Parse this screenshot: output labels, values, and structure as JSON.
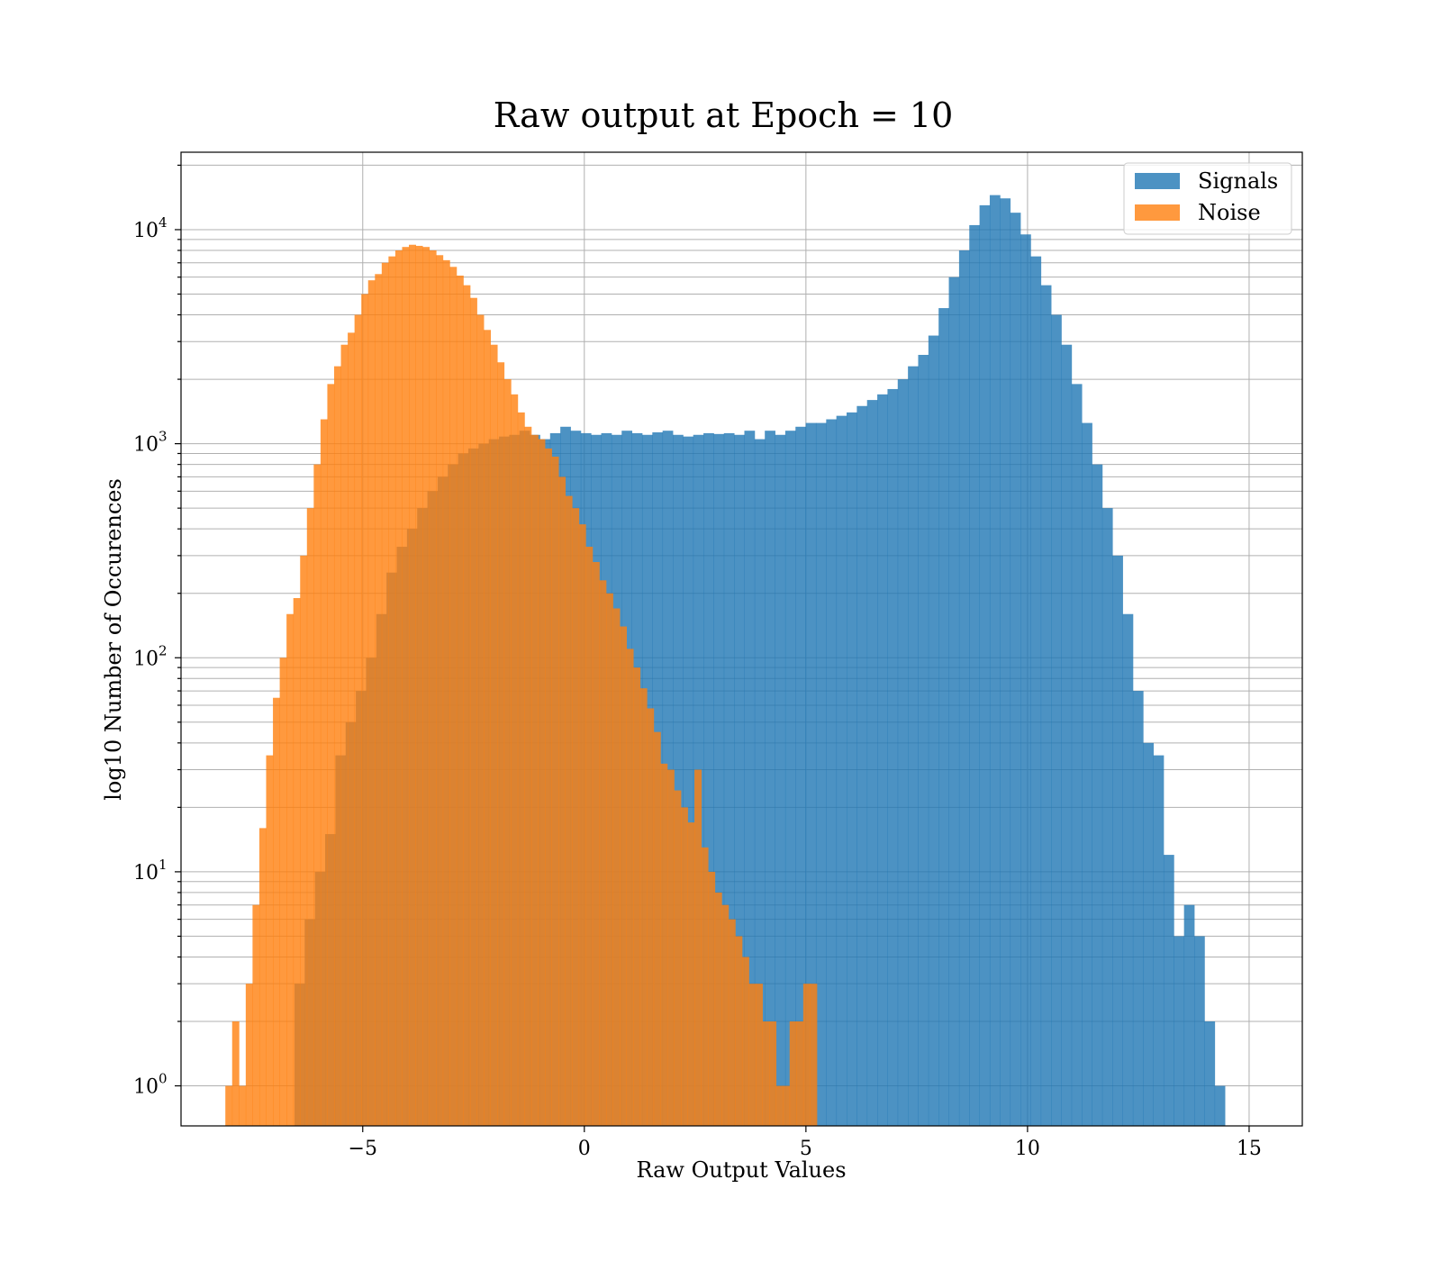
{
  "chart_data": {
    "type": "bar",
    "title": "Raw output at Epoch = 10",
    "xlabel": "Raw Output Values",
    "ylabel": "log10 Number of Occurences",
    "xlim": [
      -9.1,
      16.2
    ],
    "ylim": [
      0.65,
      23000
    ],
    "yscale": "log",
    "grid": true,
    "legend_position": "top-right",
    "xticks": [
      {
        "value": -5,
        "label": "−5"
      },
      {
        "value": 0,
        "label": "0"
      },
      {
        "value": 5,
        "label": "5"
      },
      {
        "value": 10,
        "label": "10"
      },
      {
        "value": 15,
        "label": "15"
      }
    ],
    "yticks": [
      {
        "value": 1,
        "base": "10",
        "exp": "0"
      },
      {
        "value": 10,
        "base": "10",
        "exp": "1"
      },
      {
        "value": 100,
        "base": "10",
        "exp": "2"
      },
      {
        "value": 1000,
        "base": "10",
        "exp": "3"
      },
      {
        "value": 10000,
        "base": "10",
        "exp": "4"
      }
    ],
    "series": [
      {
        "name": "Signals",
        "color": "#1f77b4",
        "alpha": 0.8,
        "bin_start": -6.54,
        "bin_width": 0.2307,
        "values": [
          3,
          6,
          10,
          15,
          35,
          50,
          70,
          100,
          160,
          250,
          330,
          400,
          500,
          600,
          700,
          800,
          900,
          950,
          1000,
          1050,
          1080,
          1100,
          1150,
          1100,
          1050,
          1120,
          1200,
          1150,
          1120,
          1100,
          1120,
          1100,
          1150,
          1120,
          1100,
          1130,
          1150,
          1100,
          1080,
          1100,
          1120,
          1110,
          1120,
          1100,
          1150,
          1050,
          1150,
          1100,
          1150,
          1200,
          1250,
          1250,
          1300,
          1350,
          1400,
          1500,
          1600,
          1700,
          1800,
          2000,
          2300,
          2600,
          3200,
          4300,
          6000,
          8000,
          10500,
          13000,
          14500,
          14000,
          12000,
          9500,
          7500,
          5500,
          4000,
          2900,
          1900,
          1250,
          800,
          500,
          300,
          160,
          70,
          40,
          35,
          12,
          5,
          7,
          5,
          2,
          1
        ]
      },
      {
        "name": "Noise",
        "color": "#ff7f0e",
        "alpha": 0.8,
        "bin_start": -8.1,
        "bin_width": 0.1534,
        "values": [
          1,
          2,
          1,
          3,
          7,
          16,
          35,
          65,
          100,
          160,
          190,
          300,
          500,
          800,
          1300,
          1900,
          2300,
          2900,
          3300,
          4000,
          5000,
          5800,
          6200,
          7000,
          7500,
          8000,
          8300,
          8500,
          8400,
          8300,
          8000,
          7600,
          7200,
          6700,
          6100,
          5500,
          4800,
          4000,
          3400,
          2900,
          2400,
          2000,
          1700,
          1400,
          1200,
          1100,
          1050,
          950,
          870,
          700,
          570,
          500,
          420,
          330,
          280,
          230,
          200,
          170,
          140,
          110,
          90,
          72,
          58,
          45,
          32,
          30,
          24,
          20,
          17,
          30,
          13,
          10,
          8,
          7,
          6,
          5,
          4,
          3,
          3,
          2,
          2,
          1,
          1,
          2,
          2,
          3,
          3
        ]
      }
    ]
  }
}
